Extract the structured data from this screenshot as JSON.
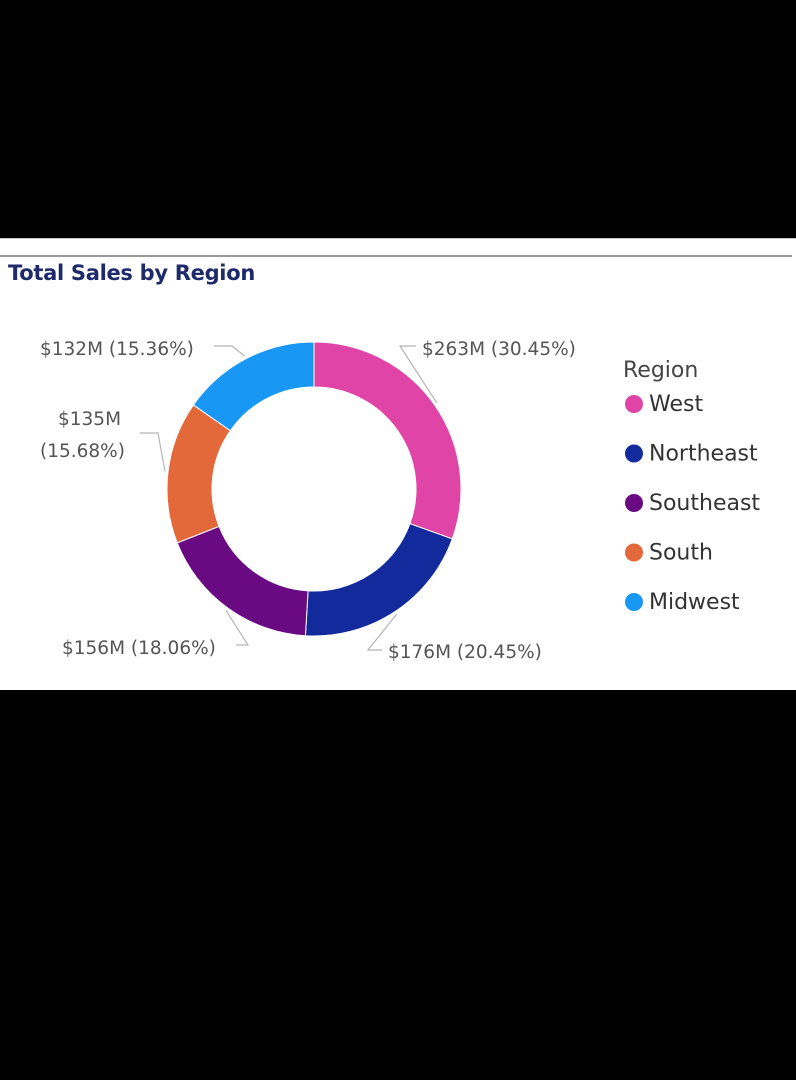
{
  "colors": {
    "West": "#e044a6",
    "Northeast": "#122a9b",
    "Southeast": "#6a0a82",
    "South": "#e3683a",
    "Midwest": "#1897f4",
    "title": "#1f2a6b"
  },
  "chart_data": {
    "type": "pie",
    "variant": "donut",
    "title": "Total Sales by Region",
    "legend": {
      "title": "Region",
      "placement": "right"
    },
    "slices": [
      {
        "name": "West",
        "value": 263,
        "percent": 30.45,
        "label": "$263M (30.45%)"
      },
      {
        "name": "Northeast",
        "value": 176,
        "percent": 20.45,
        "label": "$176M (20.45%)"
      },
      {
        "name": "Southeast",
        "value": 156,
        "percent": 18.06,
        "label": "$156M (18.06%)"
      },
      {
        "name": "South",
        "value": 135,
        "percent": 15.68,
        "label_lines": [
          "$135M",
          "(15.68%)"
        ]
      },
      {
        "name": "Midwest",
        "value": 132,
        "percent": 15.36,
        "label": "$132M (15.36%)"
      }
    ]
  }
}
